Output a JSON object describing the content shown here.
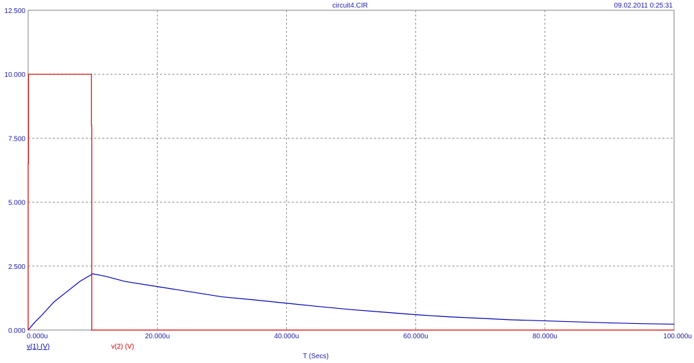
{
  "header": {
    "title": "circuit4.CIR",
    "timestamp": "09.02.2011 0:25:31"
  },
  "chart_data": {
    "type": "line",
    "title": "circuit4.CIR",
    "xlabel": "T (Secs)",
    "ylabel": "",
    "xlim": [
      0,
      100
    ],
    "ylim": [
      0,
      12.5
    ],
    "grid": true,
    "legend_position": "bottom-left",
    "x_ticks": [
      0,
      20,
      40,
      60,
      80,
      100
    ],
    "x_tick_labels": [
      "0.000u",
      "20.000u",
      "40.000u",
      "60.000u",
      "80.000u",
      "100.000u"
    ],
    "y_ticks": [
      0,
      2.5,
      5,
      7.5,
      10,
      12.5
    ],
    "y_tick_labels": [
      "0.000",
      "2.500",
      "5.000",
      "7.500",
      "10.000",
      "12.500"
    ],
    "series": [
      {
        "name": "v(1) (V)",
        "color": "#0000b0",
        "x": [
          0,
          1,
          2,
          4,
          6,
          8,
          10,
          12,
          15,
          20,
          25,
          30,
          35,
          40,
          45,
          50,
          55,
          60,
          65,
          70,
          75,
          80,
          85,
          90,
          95,
          100
        ],
        "y": [
          0,
          0.3,
          0.55,
          1.1,
          1.5,
          1.9,
          2.2,
          2.1,
          1.9,
          1.7,
          1.5,
          1.3,
          1.18,
          1.05,
          0.92,
          0.8,
          0.7,
          0.6,
          0.52,
          0.46,
          0.4,
          0.36,
          0.32,
          0.28,
          0.25,
          0.23
        ]
      },
      {
        "name": "v(2) (V)",
        "color": "#d00000",
        "x": [
          0,
          0,
          0.05,
          0.05,
          9.8,
          9.8,
          9.85,
          9.85,
          100
        ],
        "y": [
          0,
          6.5,
          6.5,
          10,
          10,
          8,
          8,
          0,
          0
        ]
      }
    ]
  }
}
